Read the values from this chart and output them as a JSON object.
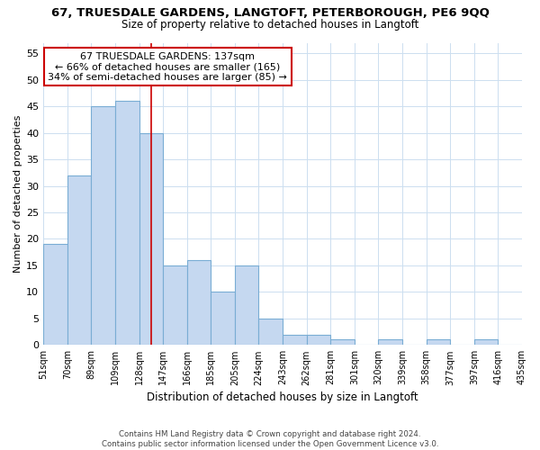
{
  "title": "67, TRUESDALE GARDENS, LANGTOFT, PETERBOROUGH, PE6 9QQ",
  "subtitle": "Size of property relative to detached houses in Langtoft",
  "xlabel": "Distribution of detached houses by size in Langtoft",
  "ylabel": "Number of detached properties",
  "bar_values": [
    19,
    32,
    45,
    46,
    40,
    15,
    16,
    10,
    15,
    5,
    2,
    2,
    1,
    0,
    1,
    0,
    1,
    0,
    1,
    0
  ],
  "bar_labels": [
    "51sqm",
    "70sqm",
    "89sqm",
    "109sqm",
    "128sqm",
    "147sqm",
    "166sqm",
    "185sqm",
    "205sqm",
    "224sqm",
    "243sqm",
    "262sqm",
    "281sqm",
    "301sqm",
    "320sqm",
    "339sqm",
    "358sqm",
    "377sqm",
    "397sqm",
    "416sqm",
    "435sqm"
  ],
  "bar_color": "#c5d8f0",
  "bar_edge_color": "#7aadd4",
  "vline_x": 4.5,
  "vline_color": "#cc0000",
  "ylim": [
    0,
    57
  ],
  "yticks": [
    0,
    5,
    10,
    15,
    20,
    25,
    30,
    35,
    40,
    45,
    50,
    55
  ],
  "annotation_text": "67 TRUESDALE GARDENS: 137sqm\n← 66% of detached houses are smaller (165)\n34% of semi-detached houses are larger (85) →",
  "annotation_box_color": "#ffffff",
  "annotation_border_color": "#cc0000",
  "footer_line1": "Contains HM Land Registry data © Crown copyright and database right 2024.",
  "footer_line2": "Contains public sector information licensed under the Open Government Licence v3.0.",
  "background_color": "#ffffff",
  "grid_color": "#ccdff0"
}
